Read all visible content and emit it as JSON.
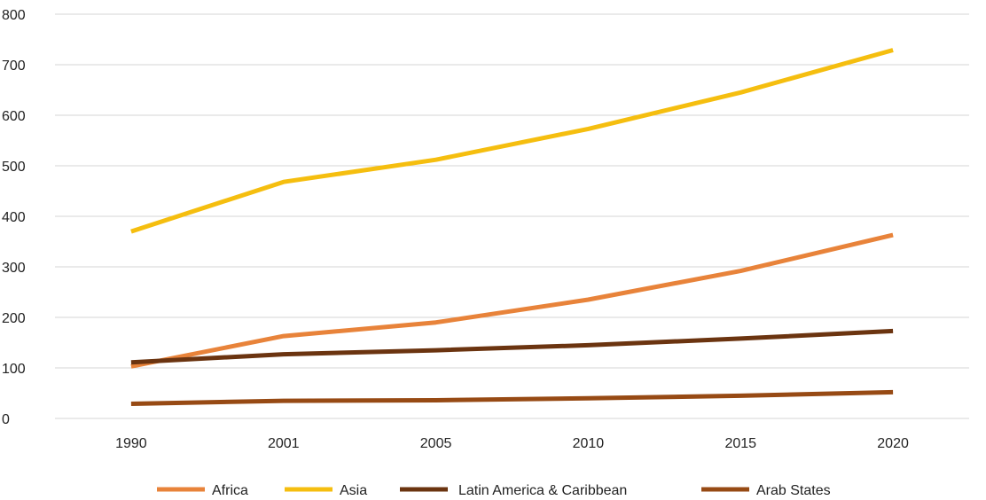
{
  "chart_data": {
    "type": "line",
    "categories": [
      "1990",
      "2001",
      "2005",
      "2010",
      "2015",
      "2020"
    ],
    "series": [
      {
        "name": "Africa",
        "color": "#E8833A",
        "values": [
          103,
          163,
          190,
          235,
          292,
          363
        ]
      },
      {
        "name": "Asia",
        "color": "#F5BE0F",
        "values": [
          370,
          468,
          512,
          573,
          645,
          729
        ]
      },
      {
        "name": "Latin America & Caribbean",
        "color": "#6B3410",
        "values": [
          111,
          127,
          135,
          145,
          158,
          173
        ]
      },
      {
        "name": "Arab States",
        "color": "#974A14",
        "values": [
          29,
          35,
          36,
          40,
          45,
          52
        ]
      }
    ],
    "yticks": [
      0,
      100,
      200,
      300,
      400,
      500,
      600,
      700,
      800
    ],
    "ylim": [
      0,
      800
    ],
    "grid": true,
    "legend_position": "bottom",
    "title": "",
    "xlabel": "",
    "ylabel": ""
  }
}
